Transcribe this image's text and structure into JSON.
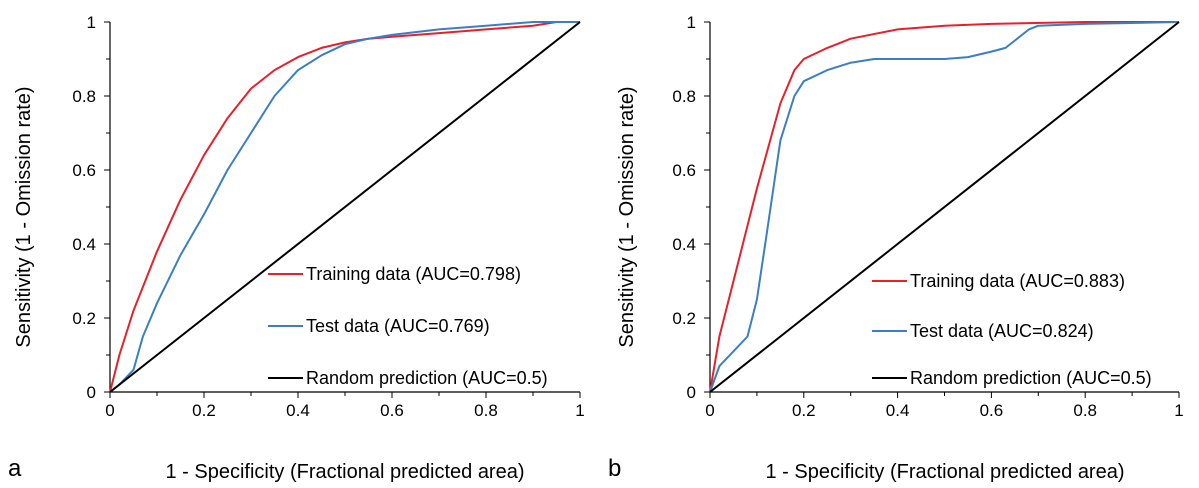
{
  "chart_data": [
    {
      "type": "line",
      "panel_label": "a",
      "title": "",
      "xlabel": "1 - Specificity (Fractional predicted area)",
      "ylabel": "Sensitivity (1 - Omission rate)",
      "xlim": [
        0,
        1
      ],
      "ylim": [
        0,
        1
      ],
      "x_ticks": [
        "0",
        "0.2",
        "0.4",
        "0.6",
        "0.8",
        "1"
      ],
      "y_ticks": [
        "0",
        "0.2",
        "0.4",
        "0.6",
        "0.8",
        "1"
      ],
      "grid": false,
      "legend_position": "bottom-right",
      "series": [
        {
          "name": "Training data (AUC=0.798)",
          "color": "#e8202a",
          "x": [
            0,
            0.02,
            0.05,
            0.1,
            0.15,
            0.2,
            0.25,
            0.3,
            0.35,
            0.4,
            0.45,
            0.5,
            0.55,
            0.6,
            0.7,
            0.8,
            0.9,
            0.95,
            1
          ],
          "y": [
            0,
            0.1,
            0.22,
            0.38,
            0.52,
            0.64,
            0.74,
            0.82,
            0.87,
            0.905,
            0.93,
            0.945,
            0.955,
            0.96,
            0.97,
            0.98,
            0.99,
            1.0,
            1.0
          ]
        },
        {
          "name": "Test data (AUC=0.769)",
          "color": "#3a7fc4",
          "x": [
            0,
            0.02,
            0.05,
            0.07,
            0.1,
            0.15,
            0.2,
            0.25,
            0.3,
            0.35,
            0.4,
            0.45,
            0.5,
            0.55,
            0.6,
            0.7,
            0.8,
            0.9,
            1
          ],
          "y": [
            0,
            0.02,
            0.06,
            0.15,
            0.24,
            0.37,
            0.48,
            0.6,
            0.7,
            0.8,
            0.87,
            0.91,
            0.94,
            0.955,
            0.965,
            0.98,
            0.99,
            1.0,
            1.0
          ]
        },
        {
          "name": "Random prediction (AUC=0.5)",
          "color": "#000000",
          "x": [
            0,
            1
          ],
          "y": [
            0,
            1
          ]
        }
      ]
    },
    {
      "type": "line",
      "panel_label": "b",
      "title": "",
      "xlabel": "1 - Specificity (Fractional predicted area)",
      "ylabel": "Sensitivity (1 - Omission rate)",
      "xlim": [
        0,
        1
      ],
      "ylim": [
        0,
        1
      ],
      "x_ticks": [
        "0",
        "0.2",
        "0.4",
        "0.6",
        "0.8",
        "1"
      ],
      "y_ticks": [
        "0",
        "0.2",
        "0.4",
        "0.6",
        "0.8",
        "1"
      ],
      "grid": false,
      "legend_position": "bottom-right",
      "series": [
        {
          "name": "Training data (AUC=0.883)",
          "color": "#e8202a",
          "x": [
            0,
            0.02,
            0.05,
            0.1,
            0.15,
            0.18,
            0.2,
            0.25,
            0.3,
            0.4,
            0.5,
            0.6,
            0.8,
            1
          ],
          "y": [
            0,
            0.15,
            0.3,
            0.55,
            0.78,
            0.87,
            0.9,
            0.93,
            0.955,
            0.98,
            0.99,
            0.995,
            1.0,
            1.0
          ]
        },
        {
          "name": "Test data (AUC=0.824)",
          "color": "#3a7fc4",
          "x": [
            0,
            0.02,
            0.05,
            0.08,
            0.1,
            0.12,
            0.15,
            0.18,
            0.2,
            0.25,
            0.3,
            0.35,
            0.4,
            0.5,
            0.55,
            0.6,
            0.63,
            0.65,
            0.68,
            0.7,
            0.8,
            1
          ],
          "y": [
            0,
            0.07,
            0.11,
            0.15,
            0.25,
            0.42,
            0.68,
            0.8,
            0.84,
            0.87,
            0.89,
            0.9,
            0.9,
            0.9,
            0.905,
            0.92,
            0.93,
            0.95,
            0.98,
            0.99,
            0.995,
            1.0
          ]
        },
        {
          "name": "Random prediction (AUC=0.5)",
          "color": "#000000",
          "x": [
            0,
            1
          ],
          "y": [
            0,
            1
          ]
        }
      ]
    }
  ]
}
